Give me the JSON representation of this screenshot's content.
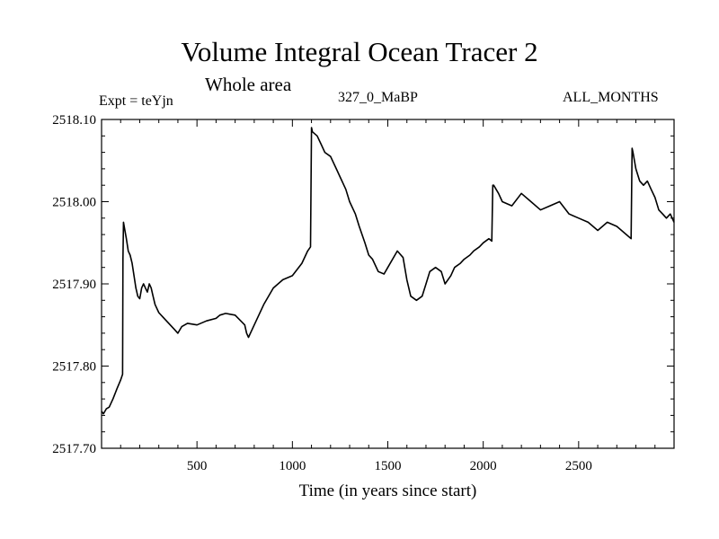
{
  "header": {
    "title": "Volume Integral Ocean Tracer 2",
    "subtitle": "Whole area",
    "experiment": "Expt = teYjn",
    "run_label": "327_0_MaBP",
    "period": "ALL_MONTHS"
  },
  "chart_data": {
    "type": "line",
    "title": "Volume Integral Ocean Tracer 2",
    "subtitle": "Whole area",
    "xlabel": "Time (in years since start)",
    "ylabel": "",
    "xlim": [
      0,
      3000
    ],
    "ylim": [
      2517.7,
      2518.1
    ],
    "x_ticks": [
      500,
      1000,
      1500,
      2000,
      2500
    ],
    "x_tick_labels": [
      "500",
      "1000",
      "1500",
      "2000",
      "2500"
    ],
    "y_ticks": [
      2517.7,
      2517.8,
      2517.9,
      2518.0,
      2518.1
    ],
    "y_tick_labels": [
      "2517.70",
      "2517.80",
      "2517.90",
      "2518.00",
      "2518.10"
    ],
    "grid": false,
    "line_color": "#000000",
    "series": [
      {
        "x": [
          0,
          10,
          25,
          40,
          60,
          80,
          100,
          110,
          112,
          115,
          120,
          130,
          140,
          150,
          160,
          170,
          180,
          190,
          200,
          210,
          220,
          230,
          240,
          250,
          260,
          270,
          280,
          300,
          320,
          340,
          360,
          380,
          400,
          420,
          450,
          500,
          550,
          600,
          620,
          650,
          700,
          750,
          760,
          770,
          800,
          850,
          900,
          950,
          1000,
          1050,
          1080,
          1095,
          1100,
          1105,
          1130,
          1150,
          1170,
          1200,
          1230,
          1250,
          1280,
          1300,
          1330,
          1350,
          1380,
          1400,
          1420,
          1450,
          1480,
          1500,
          1550,
          1580,
          1600,
          1620,
          1650,
          1680,
          1700,
          1720,
          1750,
          1780,
          1800,
          1830,
          1850,
          1880,
          1900,
          1930,
          1950,
          1980,
          2000,
          2030,
          2045,
          2050,
          2055,
          2080,
          2100,
          2150,
          2200,
          2250,
          2300,
          2350,
          2400,
          2450,
          2500,
          2550,
          2600,
          2650,
          2700,
          2750,
          2775,
          2780,
          2785,
          2800,
          2820,
          2840,
          2860,
          2880,
          2900,
          2920,
          2940,
          2960,
          2980,
          3000
        ],
        "y": [
          2517.745,
          2517.742,
          2517.748,
          2517.75,
          2517.76,
          2517.772,
          2517.783,
          2517.79,
          2517.93,
          2517.975,
          2517.968,
          2517.955,
          2517.94,
          2517.935,
          2517.925,
          2517.91,
          2517.895,
          2517.885,
          2517.882,
          2517.895,
          2517.9,
          2517.895,
          2517.89,
          2517.9,
          2517.895,
          2517.885,
          2517.875,
          2517.865,
          2517.86,
          2517.855,
          2517.85,
          2517.845,
          2517.84,
          2517.848,
          2517.852,
          2517.85,
          2517.855,
          2517.858,
          2517.862,
          2517.864,
          2517.862,
          2517.85,
          2517.84,
          2517.835,
          2517.85,
          2517.875,
          2517.895,
          2517.905,
          2517.91,
          2517.925,
          2517.94,
          2517.945,
          2518.09,
          2518.085,
          2518.08,
          2518.07,
          2518.06,
          2518.055,
          2518.04,
          2518.03,
          2518.015,
          2518.0,
          2517.985,
          2517.97,
          2517.95,
          2517.935,
          2517.93,
          2517.915,
          2517.912,
          2517.92,
          2517.94,
          2517.932,
          2517.905,
          2517.885,
          2517.88,
          2517.885,
          2517.9,
          2517.915,
          2517.92,
          2517.915,
          2517.9,
          2517.91,
          2517.92,
          2517.925,
          2517.93,
          2517.935,
          2517.94,
          2517.945,
          2517.95,
          2517.955,
          2517.952,
          2518.02,
          2518.02,
          2518.01,
          2518.0,
          2517.995,
          2518.01,
          2518.0,
          2517.99,
          2517.995,
          2518.0,
          2517.985,
          2517.98,
          2517.975,
          2517.965,
          2517.975,
          2517.97,
          2517.96,
          2517.955,
          2518.065,
          2518.06,
          2518.04,
          2518.025,
          2518.02,
          2518.025,
          2518.015,
          2518.005,
          2517.99,
          2517.985,
          2517.98,
          2517.985,
          2517.975
        ]
      }
    ]
  }
}
